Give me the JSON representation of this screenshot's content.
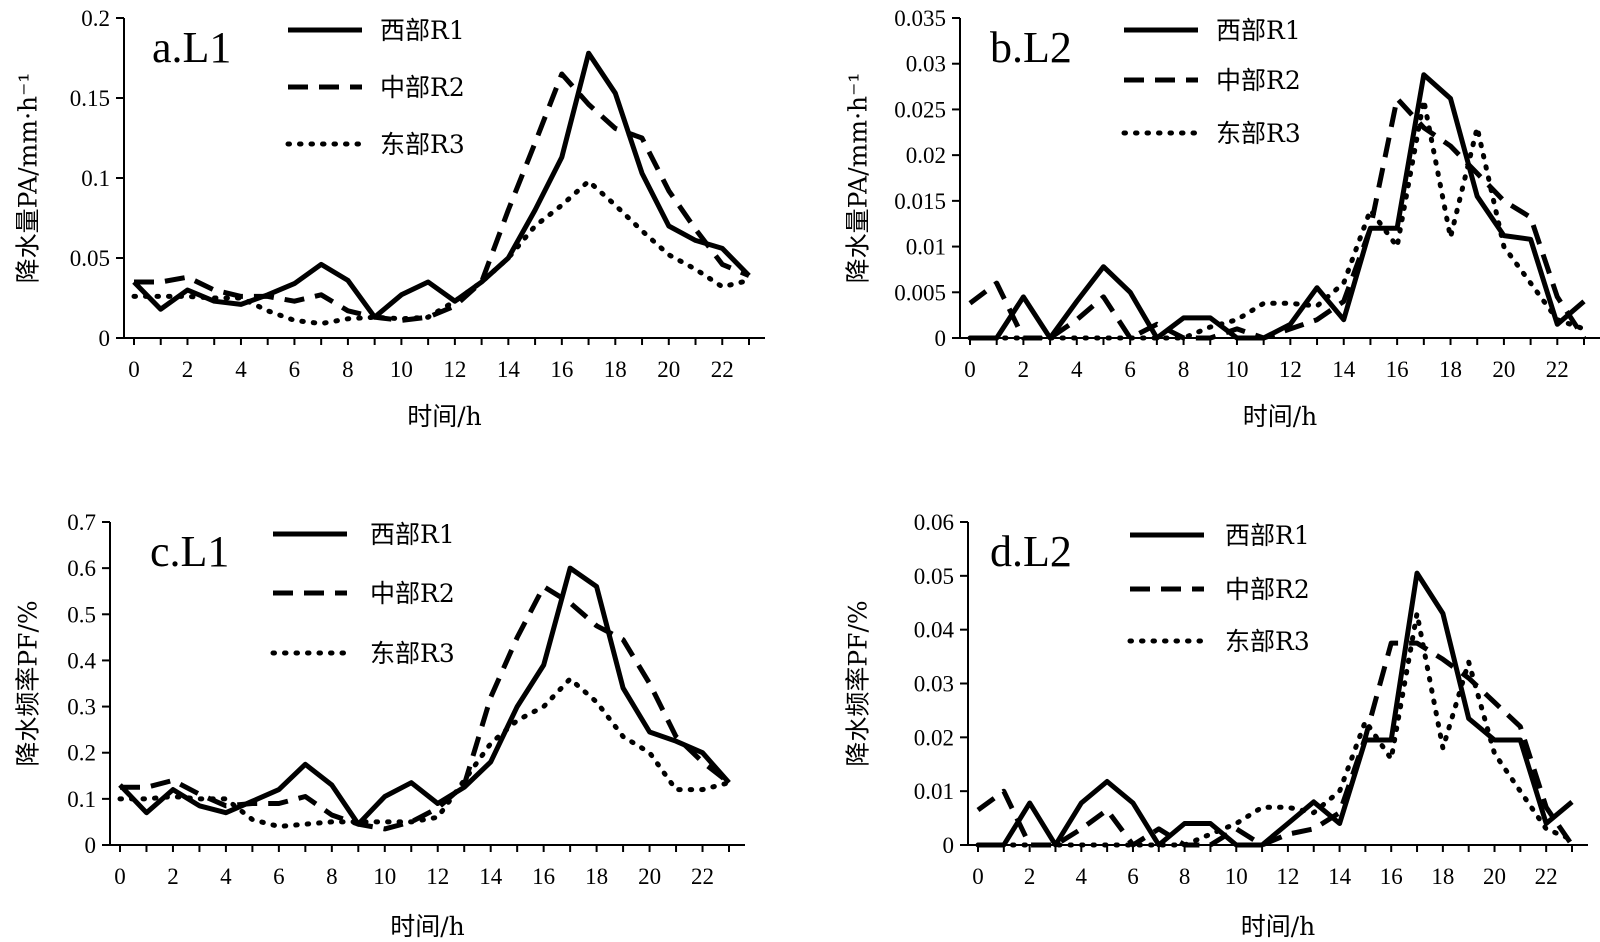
{
  "chart_data": [
    {
      "type": "line",
      "panel": "a.L1",
      "xlabel": "时间/h",
      "ylabel": "降水量PA/mm·h⁻¹",
      "ylim": [
        0,
        0.2
      ],
      "yticks": [
        "0",
        "0.05",
        "0.1",
        "0.15",
        "0.2"
      ],
      "yticks_values": [
        0,
        0.05,
        0.1,
        0.15,
        0.2
      ],
      "xticks": [
        "0",
        "2",
        "4",
        "6",
        "8",
        "10",
        "12",
        "14",
        "16",
        "18",
        "20",
        "22"
      ],
      "x": [
        0,
        1,
        2,
        3,
        4,
        5,
        6,
        7,
        8,
        9,
        10,
        11,
        12,
        13,
        14,
        15,
        16,
        17,
        18,
        19,
        20,
        21,
        22,
        23
      ],
      "series": [
        {
          "name": "西部R1",
          "style": "solid",
          "values": [
            0.035,
            0.018,
            0.03,
            0.023,
            0.021,
            0.027,
            0.034,
            0.046,
            0.036,
            0.013,
            0.027,
            0.035,
            0.023,
            0.035,
            0.05,
            0.08,
            0.113,
            0.178,
            0.153,
            0.103,
            0.07,
            0.061,
            0.056,
            0.039
          ]
        },
        {
          "name": "中部R2",
          "style": "dashed",
          "values": [
            0.035,
            0.035,
            0.038,
            0.03,
            0.026,
            0.026,
            0.023,
            0.027,
            0.017,
            0.013,
            0.011,
            0.013,
            0.02,
            0.035,
            0.08,
            0.122,
            0.165,
            0.146,
            0.131,
            0.125,
            0.092,
            0.068,
            0.046,
            0.039
          ]
        },
        {
          "name": "东部R3",
          "style": "dotted",
          "values": [
            0.026,
            0.026,
            0.026,
            0.025,
            0.025,
            0.017,
            0.011,
            0.009,
            0.012,
            0.013,
            0.012,
            0.013,
            0.023,
            0.035,
            0.05,
            0.07,
            0.083,
            0.098,
            0.083,
            0.067,
            0.052,
            0.043,
            0.032,
            0.036
          ]
        }
      ]
    },
    {
      "type": "line",
      "panel": "b.L2",
      "xlabel": "时间/h",
      "ylabel": "降水量PA/mm·h⁻¹",
      "ylim": [
        0,
        0.035
      ],
      "yticks": [
        "0",
        "0.005",
        "0.01",
        "0.015",
        "0.02",
        "0.025",
        "0.03",
        "0.035"
      ],
      "yticks_values": [
        0,
        0.005,
        0.01,
        0.015,
        0.02,
        0.025,
        0.03,
        0.035
      ],
      "xticks": [
        "0",
        "2",
        "4",
        "6",
        "8",
        "10",
        "12",
        "14",
        "16",
        "18",
        "20",
        "22"
      ],
      "x": [
        0,
        1,
        2,
        3,
        4,
        5,
        6,
        7,
        8,
        9,
        10,
        11,
        12,
        13,
        14,
        15,
        16,
        17,
        18,
        19,
        20,
        21,
        22,
        23
      ],
      "series": [
        {
          "name": "西部R1",
          "style": "solid",
          "values": [
            0,
            0,
            0.0045,
            0,
            0.004,
            0.0078,
            0.005,
            0,
            0.0022,
            0.0022,
            0,
            0,
            0.0015,
            0.0055,
            0.002,
            0.012,
            0.012,
            0.0288,
            0.0262,
            0.0155,
            0.0112,
            0.0108,
            0.0015,
            0.004
          ]
        },
        {
          "name": "中部R2",
          "style": "dashed",
          "values": [
            0.0038,
            0.006,
            0,
            0,
            0.002,
            0.0045,
            0,
            0.0015,
            0,
            0,
            0.001,
            0,
            0.001,
            0.002,
            0.004,
            0.012,
            0.0262,
            0.023,
            0.021,
            0.018,
            0.015,
            0.0132,
            0.0045,
            0
          ]
        },
        {
          "name": "东部R3",
          "style": "dotted",
          "values": [
            0,
            0,
            0,
            0,
            0,
            0,
            0,
            0,
            0,
            0.0012,
            0.002,
            0.0038,
            0.0038,
            0.0035,
            0.006,
            0.014,
            0.01,
            0.026,
            0.011,
            0.023,
            0.01,
            0.006,
            0.002,
            0.001
          ]
        }
      ]
    },
    {
      "type": "line",
      "panel": "c.L1",
      "xlabel": "时间/h",
      "ylabel": "降水频率PF/%",
      "ylim": [
        0,
        0.7
      ],
      "yticks": [
        "0",
        "0.1",
        "0.2",
        "0.3",
        "0.4",
        "0.5",
        "0.6",
        "0.7"
      ],
      "yticks_values": [
        0,
        0.1,
        0.2,
        0.3,
        0.4,
        0.5,
        0.6,
        0.7
      ],
      "xticks": [
        "0",
        "2",
        "4",
        "6",
        "8",
        "10",
        "12",
        "14",
        "16",
        "18",
        "20",
        "22"
      ],
      "x": [
        0,
        1,
        2,
        3,
        4,
        5,
        6,
        7,
        8,
        9,
        10,
        11,
        12,
        13,
        14,
        15,
        16,
        17,
        18,
        19,
        20,
        21,
        22,
        23
      ],
      "series": [
        {
          "name": "西部R1",
          "style": "solid",
          "values": [
            0.13,
            0.07,
            0.12,
            0.085,
            0.07,
            0.095,
            0.12,
            0.175,
            0.13,
            0.045,
            0.105,
            0.135,
            0.09,
            0.125,
            0.18,
            0.3,
            0.39,
            0.6,
            0.56,
            0.34,
            0.245,
            0.225,
            0.2,
            0.135
          ]
        },
        {
          "name": "中部R2",
          "style": "dashed",
          "values": [
            0.125,
            0.125,
            0.14,
            0.11,
            0.085,
            0.09,
            0.09,
            0.105,
            0.065,
            0.045,
            0.035,
            0.05,
            0.08,
            0.13,
            0.32,
            0.45,
            0.56,
            0.525,
            0.475,
            0.445,
            0.35,
            0.235,
            0.18,
            0.135
          ]
        },
        {
          "name": "东部R3",
          "style": "dotted",
          "values": [
            0.1,
            0.1,
            0.105,
            0.1,
            0.1,
            0.055,
            0.04,
            0.045,
            0.05,
            0.05,
            0.05,
            0.05,
            0.06,
            0.14,
            0.22,
            0.27,
            0.3,
            0.36,
            0.31,
            0.235,
            0.2,
            0.12,
            0.12,
            0.135
          ]
        }
      ]
    },
    {
      "type": "line",
      "panel": "d.L2",
      "xlabel": "时间/h",
      "ylabel": "降水频率PF/%",
      "ylim": [
        0,
        0.06
      ],
      "yticks": [
        "0",
        "0.01",
        "0.02",
        "0.03",
        "0.04",
        "0.05",
        "0.06"
      ],
      "yticks_values": [
        0,
        0.01,
        0.02,
        0.03,
        0.04,
        0.05,
        0.06
      ],
      "xticks": [
        "0",
        "2",
        "4",
        "6",
        "8",
        "10",
        "12",
        "14",
        "16",
        "18",
        "20",
        "22"
      ],
      "x": [
        0,
        1,
        2,
        3,
        4,
        5,
        6,
        7,
        8,
        9,
        10,
        11,
        12,
        13,
        14,
        15,
        16,
        17,
        18,
        19,
        20,
        21,
        22,
        23
      ],
      "series": [
        {
          "name": "西部R1",
          "style": "solid",
          "values": [
            0,
            0,
            0.0078,
            0,
            0.0078,
            0.0118,
            0.0078,
            0,
            0.004,
            0.004,
            0,
            0,
            0.004,
            0.008,
            0.004,
            0.0195,
            0.0195,
            0.0505,
            0.043,
            0.0235,
            0.0195,
            0.0195,
            0.004,
            0.008
          ]
        },
        {
          "name": "中部R2",
          "style": "dashed",
          "values": [
            0.0065,
            0.01,
            0,
            0,
            0.003,
            0.0065,
            0,
            0.003,
            0,
            0,
            0.003,
            0,
            0.002,
            0.003,
            0.006,
            0.02,
            0.0375,
            0.0375,
            0.0345,
            0.031,
            0.0265,
            0.022,
            0.007,
            0
          ]
        },
        {
          "name": "东部R3",
          "style": "dotted",
          "values": [
            0,
            0,
            0,
            0,
            0,
            0,
            0,
            0,
            0,
            0.002,
            0.004,
            0.007,
            0.007,
            0.006,
            0.01,
            0.023,
            0.016,
            0.043,
            0.018,
            0.034,
            0.017,
            0.01,
            0.003,
            0.001
          ]
        }
      ]
    }
  ]
}
